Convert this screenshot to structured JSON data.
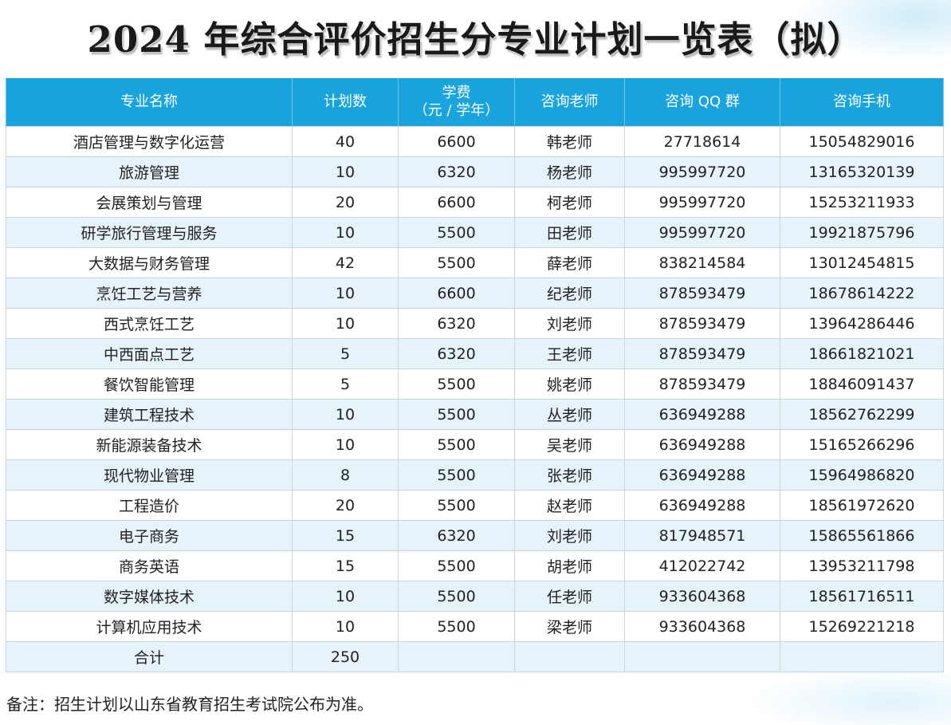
{
  "title": "2024 年综合评价招生分专业计划一览表（拟）",
  "table": {
    "headers": {
      "major": "专业名称",
      "plan": "计划数",
      "fee_line1": "学费",
      "fee_line2": "（元 / 学年）",
      "teacher": "咨询老师",
      "qq": "咨询 QQ 群",
      "phone": "咨询手机"
    },
    "rows": [
      [
        "酒店管理与数字化运营",
        "40",
        "6600",
        "韩老师",
        "27718614",
        "15054829016"
      ],
      [
        "旅游管理",
        "10",
        "6320",
        "杨老师",
        "995997720",
        "13165320139"
      ],
      [
        "会展策划与管理",
        "20",
        "6600",
        "柯老师",
        "995997720",
        "15253211933"
      ],
      [
        "研学旅行管理与服务",
        "10",
        "5500",
        "田老师",
        "995997720",
        "19921875796"
      ],
      [
        "大数据与财务管理",
        "42",
        "5500",
        "薛老师",
        "838214584",
        "13012454815"
      ],
      [
        "烹饪工艺与营养",
        "10",
        "6600",
        "纪老师",
        "878593479",
        "18678614222"
      ],
      [
        "西式烹饪工艺",
        "10",
        "6320",
        "刘老师",
        "878593479",
        "13964286446"
      ],
      [
        "中西面点工艺",
        "5",
        "6320",
        "王老师",
        "878593479",
        "18661821021"
      ],
      [
        "餐饮智能管理",
        "5",
        "5500",
        "姚老师",
        "878593479",
        "18846091437"
      ],
      [
        "建筑工程技术",
        "10",
        "5500",
        "丛老师",
        "636949288",
        "18562762299"
      ],
      [
        "新能源装备技术",
        "10",
        "5500",
        "吴老师",
        "636949288",
        "15165266296"
      ],
      [
        "现代物业管理",
        "8",
        "5500",
        "张老师",
        "636949288",
        "15964986820"
      ],
      [
        "工程造价",
        "20",
        "5500",
        "赵老师",
        "636949288",
        "18561972620"
      ],
      [
        "电子商务",
        "15",
        "6320",
        "刘老师",
        "817948571",
        "15865561866"
      ],
      [
        "商务英语",
        "15",
        "5500",
        "胡老师",
        "412022742",
        "13953211798"
      ],
      [
        "数字媒体技术",
        "10",
        "5500",
        "任老师",
        "933604368",
        "18561716511"
      ],
      [
        "计算机应用技术",
        "10",
        "5500",
        "梁老师",
        "933604368",
        "15269221218"
      ]
    ],
    "total": {
      "label": "合计",
      "plan": "250"
    }
  },
  "note": "备注：招生计划以山东省教育招生考试院公布为准。",
  "colors": {
    "header_bg": "#1aa4dd",
    "stripe_bg": "#e6f3fb"
  }
}
